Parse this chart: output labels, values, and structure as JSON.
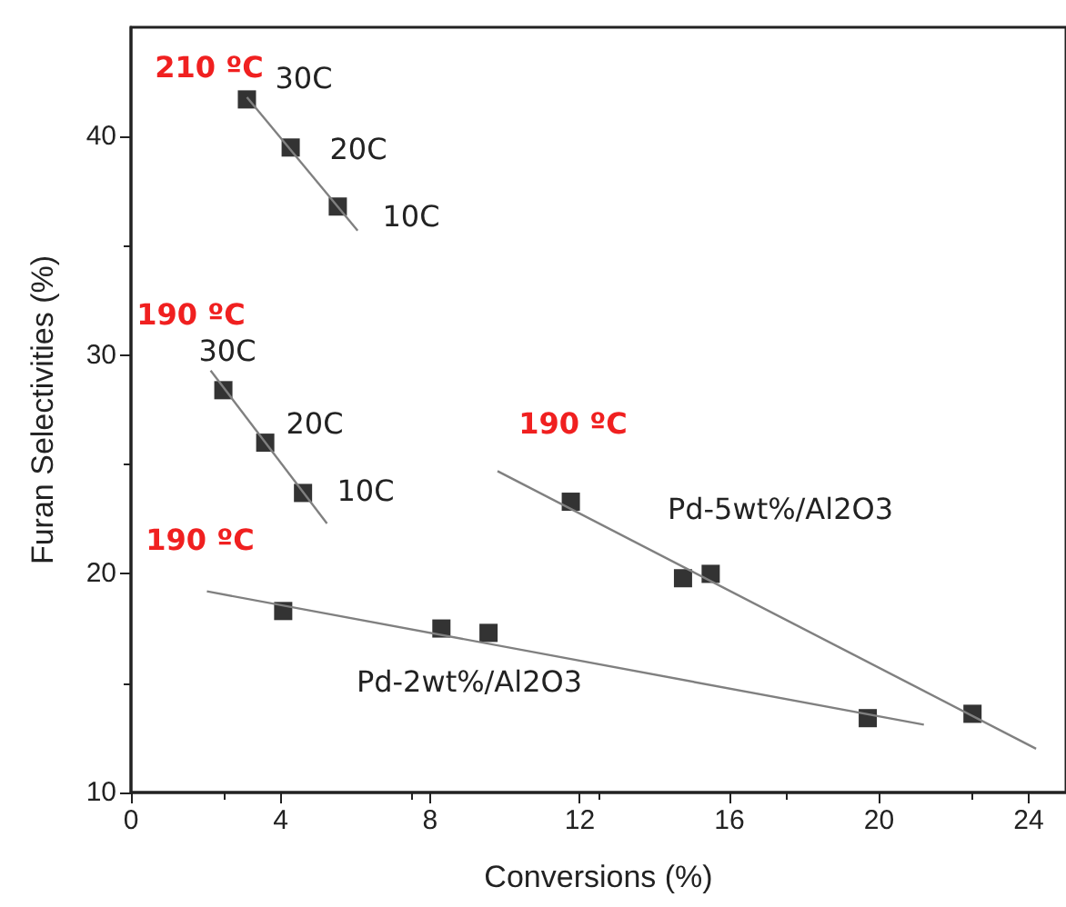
{
  "chart_data": {
    "type": "scatter",
    "xlabel": "Conversions (%)",
    "ylabel": "Furan Selectivities (%)",
    "xlim": [
      0,
      25
    ],
    "xticks": [
      0,
      4,
      8,
      12,
      16,
      20,
      24
    ],
    "ylim": [
      10,
      45
    ],
    "yticks": [
      10,
      20,
      30,
      40
    ],
    "marker": "square",
    "series": [
      {
        "color": "#000000",
        "x": [
          3.1,
          4.27,
          5.53
        ],
        "values": [
          41.7,
          39.5,
          36.8
        ]
      },
      {
        "type": "line",
        "marker": "none",
        "color": "#808080",
        "x": [
          3.1,
          6.06
        ],
        "values": [
          41.8,
          35.7
        ]
      },
      {
        "color": "#000000",
        "x": [
          2.47,
          3.59,
          4.6
        ],
        "values": [
          28.4,
          26.0,
          23.7
        ]
      },
      {
        "type": "line",
        "marker": "none",
        "color": "#808080",
        "x": [
          2.13,
          5.24
        ],
        "values": [
          29.3,
          22.3
        ]
      },
      {
        "color": "#000000",
        "x": [
          4.07,
          8.3,
          9.56,
          19.7
        ],
        "values": [
          18.3,
          17.5,
          17.3,
          13.4
        ]
      },
      {
        "type": "line",
        "marker": "none",
        "color": "#808080",
        "x": [
          2.03,
          21.2
        ],
        "values": [
          19.2,
          13.1
        ]
      },
      {
        "color": "#000000",
        "x": [
          11.76,
          14.76,
          15.5,
          22.5
        ],
        "values": [
          23.3,
          19.8,
          20.0,
          13.6
        ]
      },
      {
        "type": "line",
        "marker": "none",
        "color": "#808080",
        "x": [
          9.8,
          24.2
        ],
        "values": [
          24.7,
          12.0
        ]
      }
    ],
    "annotations": [
      "210 ºC",
      "30C",
      "20C",
      "10C",
      "190 ºC",
      "30C",
      "20C",
      "10C",
      "190 ºC",
      "190 ºC",
      "Pd-5wt%/Al2O3",
      "Pd-2wt%/Al2O3"
    ]
  }
}
